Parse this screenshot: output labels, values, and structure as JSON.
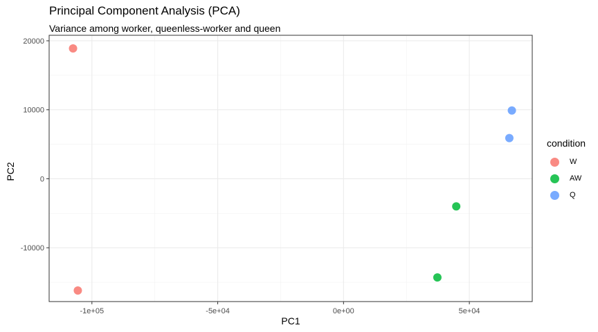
{
  "chart_data": {
    "type": "scatter",
    "title": "Principal Component Analysis (PCA)",
    "subtitle": "Variance among worker, queenless-worker and queen",
    "xlabel": "PC1",
    "ylabel": "PC2",
    "xlim": [
      -117000,
      75000
    ],
    "ylim": [
      -17800,
      20800
    ],
    "xticks": [
      -100000,
      -50000,
      0,
      50000
    ],
    "xtick_labels": [
      "-1e+05",
      "-5e+04",
      "0e+00",
      "5e+04"
    ],
    "yticks": [
      -10000,
      0,
      10000,
      20000
    ],
    "ytick_labels": [
      "-10000",
      "0",
      "10000",
      "20000"
    ],
    "grid": true,
    "legend_title": "condition",
    "legend_position": "right",
    "series": [
      {
        "name": "W",
        "color": "#F8766D",
        "points": [
          [
            -107500,
            18900
          ],
          [
            -105600,
            -16200
          ]
        ]
      },
      {
        "name": "AW",
        "color": "#00BA38",
        "points": [
          [
            44800,
            -4000
          ],
          [
            37300,
            -14300
          ]
        ]
      },
      {
        "name": "Q",
        "color": "#619CFF",
        "points": [
          [
            66900,
            9900
          ],
          [
            65900,
            5900
          ]
        ]
      }
    ]
  }
}
